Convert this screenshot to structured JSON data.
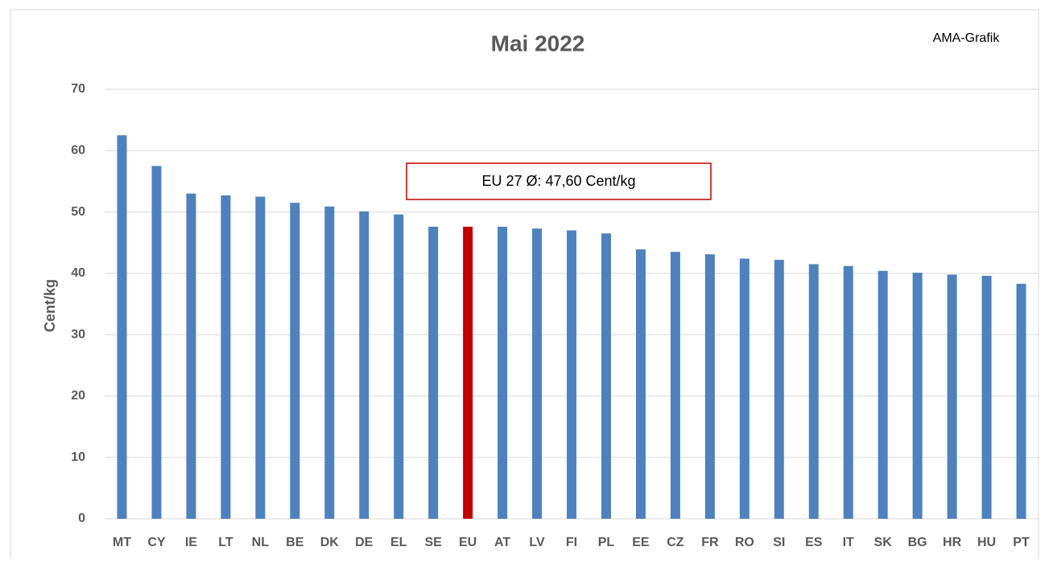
{
  "chart_data": {
    "type": "bar",
    "title": "Mai 2022",
    "source_note": "AMA-Grafik",
    "annotation": "EU 27 Ø: 47,60 Cent/kg",
    "y_label": "Cent/kg",
    "categories": [
      "MT",
      "CY",
      "IE",
      "LT",
      "NL",
      "BE",
      "DK",
      "DE",
      "EL",
      "SE",
      "EU",
      "AT",
      "LV",
      "FI",
      "PL",
      "EE",
      "CZ",
      "FR",
      "RO",
      "SI",
      "ES",
      "IT",
      "SK",
      "BG",
      "HR",
      "HU",
      "PT"
    ],
    "values": [
      62.5,
      57.5,
      53.0,
      52.7,
      52.5,
      51.5,
      50.9,
      50.1,
      49.6,
      47.6,
      47.6,
      47.6,
      47.3,
      47.0,
      46.5,
      43.9,
      43.5,
      43.1,
      42.4,
      42.2,
      41.5,
      41.2,
      40.4,
      40.1,
      39.8,
      39.6,
      38.3
    ],
    "colors": [
      "#4f81bd",
      "#4f81bd",
      "#4f81bd",
      "#4f81bd",
      "#4f81bd",
      "#4f81bd",
      "#4f81bd",
      "#4f81bd",
      "#4f81bd",
      "#4f81bd",
      "#c00000",
      "#4f81bd",
      "#4f81bd",
      "#4f81bd",
      "#4f81bd",
      "#4f81bd",
      "#4f81bd",
      "#4f81bd",
      "#4f81bd",
      "#4f81bd",
      "#4f81bd",
      "#4f81bd",
      "#4f81bd",
      "#4f81bd",
      "#4f81bd",
      "#4f81bd",
      "#4f81bd"
    ],
    "ylim": [
      0,
      70
    ],
    "yticks": [
      0,
      10,
      20,
      30,
      40,
      50,
      60,
      70
    ],
    "grid": true
  }
}
